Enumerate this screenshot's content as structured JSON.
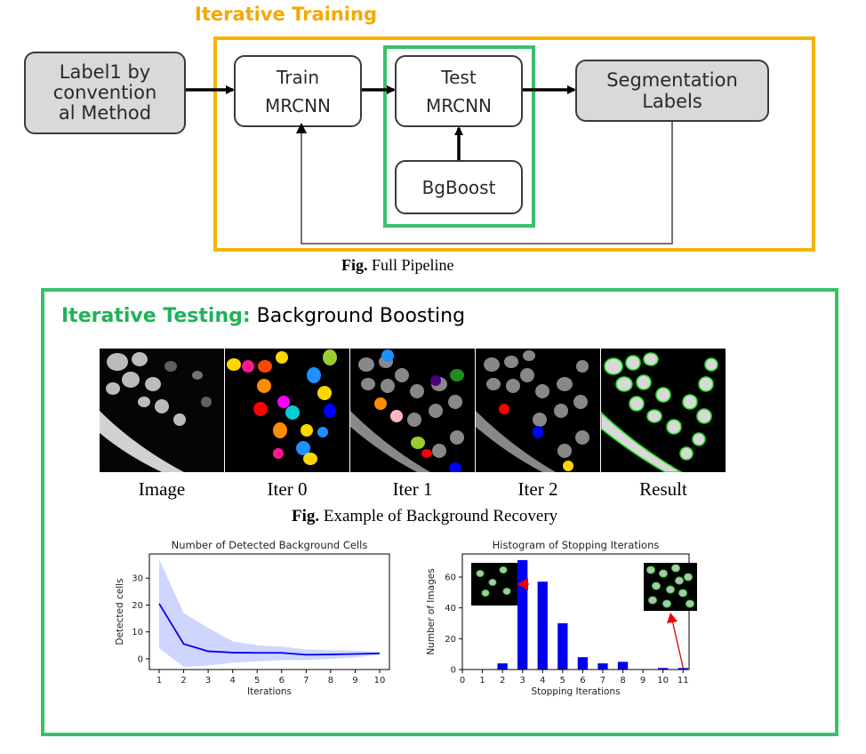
{
  "top": {
    "title": "Iterative Training",
    "nodes": {
      "label1": [
        "Label1 by",
        "convention",
        "al Method"
      ],
      "train": [
        "Train",
        "MRCNN"
      ],
      "test": [
        "Test",
        "MRCNN"
      ],
      "bgboost": "BgBoost",
      "seg": [
        "Segmentation",
        "Labels"
      ]
    },
    "caption_bold": "Fig.",
    "caption_text": " Full Pipeline"
  },
  "bottom": {
    "title_colored": "Iterative Testing:",
    "title_rest": " Background Boosting",
    "images": [
      "Image",
      "Iter 0",
      "Iter 1",
      "Iter 2",
      "Result"
    ],
    "caption_bold": "Fig.",
    "caption_text": " Example of Background Recovery"
  },
  "colors": {
    "orange": "#f5b400",
    "green": "#39c06a",
    "series": "#0000ee"
  },
  "chart_data": [
    {
      "type": "line",
      "title": "Number of Detected Background Cells",
      "xlabel": "Iterations",
      "ylabel": "Detected cells",
      "x": [
        1,
        2,
        3,
        4,
        5,
        6,
        7,
        8,
        9,
        10
      ],
      "series": [
        {
          "values": [
            20.5,
            5.5,
            2.8,
            2.3,
            2.2,
            2.2,
            1.5,
            1.6,
            1.8,
            2.0
          ],
          "upper": [
            37,
            17,
            11.5,
            6.5,
            5,
            4.5,
            3.5,
            3.2,
            3.0,
            2.5
          ],
          "lower": [
            4,
            -3,
            -2.5,
            -1.5,
            -1,
            -0.5,
            -0.5,
            0,
            0.5,
            1.5
          ]
        }
      ],
      "xticks": [
        1,
        2,
        3,
        4,
        5,
        6,
        7,
        8,
        9,
        10
      ],
      "yticks": [
        0,
        10,
        20,
        30
      ],
      "xlim": [
        0.6,
        10.4
      ],
      "ylim": [
        -4,
        39
      ]
    },
    {
      "type": "bar",
      "title": "Histogram of Stopping Iterations",
      "xlabel": "Stopping Iterations",
      "ylabel": "Number of Images",
      "x": [
        2,
        3,
        4,
        5,
        6,
        7,
        8,
        10,
        11
      ],
      "values": [
        4,
        71,
        57,
        30,
        8,
        4,
        5,
        1,
        1
      ],
      "xticks": [
        0,
        1,
        2,
        3,
        4,
        5,
        6,
        7,
        8,
        9,
        10,
        11
      ],
      "yticks": [
        0,
        20,
        40,
        60
      ],
      "xlim": [
        0,
        11.3
      ],
      "ylim": [
        0,
        75
      ]
    }
  ]
}
